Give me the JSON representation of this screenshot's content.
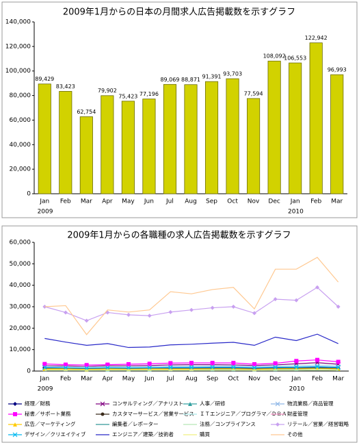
{
  "chart_data": [
    {
      "type": "bar",
      "title": "2009年1月からの日本の月間求人広告掲載数を示すグラフ",
      "categories": [
        "Jan",
        "Feb",
        "Mar",
        "Apr",
        "May",
        "Jun",
        "Jul",
        "Aug",
        "Sep",
        "Oct",
        "Nov",
        "Dec",
        "Jan",
        "Feb",
        "Mar"
      ],
      "years": [
        "2009",
        null,
        null,
        null,
        null,
        null,
        null,
        null,
        null,
        null,
        null,
        null,
        "2010",
        null,
        null
      ],
      "values": [
        89429,
        83423,
        62754,
        79902,
        75423,
        77196,
        89069,
        88871,
        91391,
        93703,
        77594,
        108092,
        106553,
        122942,
        96993
      ],
      "value_labels": [
        "89,429",
        "83,423",
        "62,754",
        "79,902",
        "75,423",
        "77,196",
        "89,069",
        "88,871",
        "91,391",
        "93,703",
        "77,594",
        "108,092",
        "106,553",
        "122,942",
        "96,993"
      ],
      "color": "#d2d200",
      "ylim": [
        0,
        140000
      ],
      "yticks": [
        0,
        {
          "value": 20000,
          "label": "20,000"
        },
        {
          "value": 40000,
          "label": "40,000"
        },
        {
          "value": 60000,
          "label": "60,000"
        },
        {
          "value": 80000,
          "label": "80,000"
        },
        {
          "value": 100000,
          "label": "100,000"
        },
        {
          "value": 120000,
          "label": "120,000"
        },
        {
          "value": 140000,
          "label": "140,000"
        }
      ],
      "grid": false
    },
    {
      "type": "line",
      "title": "2009年1月からの各職種の求人広告掲載数を示すグラフ",
      "categories": [
        "Jan",
        "Feb",
        "Mar",
        "Apr",
        "May",
        "Jun",
        "Jul",
        "Aug",
        "Sep",
        "Oct",
        "Nov",
        "Dec",
        "Jan",
        "Feb",
        "Mar"
      ],
      "years": [
        "2009",
        null,
        null,
        null,
        null,
        null,
        null,
        null,
        null,
        null,
        null,
        null,
        "2010",
        null,
        null
      ],
      "ylim": [
        0,
        60000
      ],
      "yticks": [
        0,
        {
          "value": 10000,
          "label": "10,000"
        },
        {
          "value": 20000,
          "label": "20,000"
        },
        {
          "value": 30000,
          "label": "30,000"
        },
        {
          "value": 40000,
          "label": "40,000"
        },
        {
          "value": 50000,
          "label": "50,000"
        },
        {
          "value": 60000,
          "label": "60,000"
        }
      ],
      "grid": false,
      "series": [
        {
          "name": "経理／財務",
          "color": "#000080",
          "marker": "diamond",
          "values": [
            1500,
            1400,
            1200,
            1400,
            1300,
            1300,
            1400,
            1400,
            1400,
            1400,
            1200,
            1400,
            1500,
            1700,
            1400
          ]
        },
        {
          "name": "コンサルティング／アナリスト",
          "color": "#800080",
          "marker": "x",
          "values": [
            2500,
            2400,
            2100,
            2500,
            2500,
            2600,
            2900,
            3000,
            3000,
            2900,
            2600,
            2900,
            3400,
            3900,
            3200
          ]
        },
        {
          "name": "人事／研修",
          "color": "#33a0a0",
          "marker": "triangle",
          "values": [
            900,
            900,
            700,
            800,
            800,
            800,
            900,
            900,
            900,
            900,
            800,
            900,
            1000,
            1200,
            1000
          ]
        },
        {
          "name": "物流業務／商品管理",
          "color": "#8fb8e8",
          "marker": "x",
          "values": [
            1800,
            1700,
            1500,
            1800,
            1700,
            1800,
            1900,
            1900,
            2000,
            2000,
            1800,
            2000,
            2000,
            2300,
            2000
          ]
        },
        {
          "name": "秘書／サポート業務",
          "color": "#ff00ff",
          "marker": "square",
          "values": [
            3300,
            3000,
            2800,
            3000,
            3200,
            3400,
            3700,
            3800,
            3800,
            3800,
            3200,
            3600,
            4700,
            5200,
            4300
          ]
        },
        {
          "name": "カスタマーサービス／営業サービス",
          "color": "#3a2a1a",
          "marker": "circle",
          "values": [
            1200,
            1100,
            900,
            1100,
            1000,
            1000,
            1100,
            1100,
            1200,
            1200,
            1000,
            1200,
            1200,
            1400,
            1200
          ]
        },
        {
          "name": "ＩＴエンジニア／プログラマ／ＤＢＡ",
          "color": "#a8e8e8",
          "marker": "none",
          "values": [
            2200,
            2000,
            1800,
            2100,
            2000,
            2100,
            2300,
            2300,
            2400,
            2400,
            2100,
            2500,
            2600,
            2900,
            2500
          ]
        },
        {
          "name": "財産管理",
          "color": "#ff99cc",
          "marker": "none",
          "values": [
            500,
            500,
            400,
            500,
            500,
            500,
            500,
            500,
            500,
            500,
            400,
            500,
            500,
            600,
            500
          ]
        },
        {
          "name": "広告／マーケティング",
          "color": "#ffcc00",
          "marker": "triangle",
          "values": [
            1000,
            1000,
            800,
            1000,
            900,
            1000,
            1000,
            1000,
            1100,
            1100,
            900,
            1100,
            1200,
            1300,
            1100
          ]
        },
        {
          "name": "編集者／レポーター",
          "color": "#339999",
          "marker": "none",
          "values": [
            400,
            400,
            300,
            400,
            400,
            400,
            400,
            400,
            400,
            400,
            300,
            400,
            400,
            500,
            400
          ]
        },
        {
          "name": "法務／コンプライアンス",
          "color": "#b8e8b8",
          "marker": "none",
          "values": [
            300,
            300,
            300,
            300,
            300,
            300,
            300,
            300,
            300,
            300,
            300,
            300,
            300,
            400,
            300
          ]
        },
        {
          "name": "リテール／営業／経営戦略",
          "color": "#c8a0f0",
          "marker": "diamond",
          "values": [
            30000,
            27300,
            23500,
            27300,
            26200,
            25800,
            27500,
            28500,
            29500,
            30000,
            27000,
            33500,
            33000,
            39000,
            30000
          ]
        },
        {
          "name": "デザイン／クリエイティブ",
          "color": "#00b8f0",
          "marker": "x",
          "values": [
            1600,
            1500,
            1300,
            1500,
            1400,
            1500,
            1600,
            1600,
            1700,
            1700,
            1500,
            1700,
            1800,
            2000,
            1700
          ]
        },
        {
          "name": "エンジニア／建築／技術者",
          "color": "#2828c8",
          "marker": "none",
          "values": [
            15200,
            13500,
            12000,
            12800,
            11000,
            11200,
            12200,
            12500,
            13000,
            13400,
            12000,
            15800,
            14200,
            17200,
            12800
          ]
        },
        {
          "name": "購買",
          "color": "#f0f080",
          "marker": "none",
          "values": [
            600,
            600,
            500,
            600,
            600,
            600,
            600,
            600,
            600,
            600,
            500,
            600,
            700,
            700,
            600
          ]
        },
        {
          "name": "その他",
          "color": "#ffc890",
          "marker": "none",
          "values": [
            30000,
            30500,
            17000,
            28500,
            27500,
            28500,
            37000,
            36000,
            38000,
            39000,
            29000,
            47500,
            47500,
            53000,
            41500
          ]
        }
      ]
    }
  ]
}
